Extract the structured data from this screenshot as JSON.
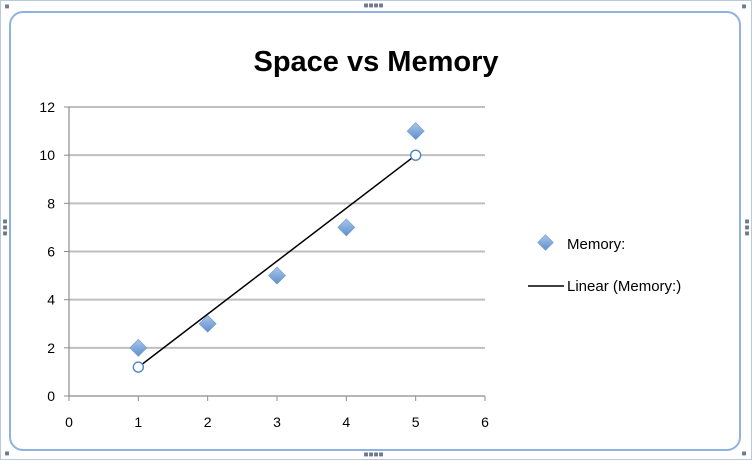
{
  "chart_data": {
    "type": "scatter",
    "title": "Space vs Memory",
    "xlabel": "",
    "ylabel": "",
    "xlim": [
      0,
      6
    ],
    "ylim": [
      0,
      12
    ],
    "xticks": [
      0,
      1,
      2,
      3,
      4,
      5,
      6
    ],
    "yticks": [
      0,
      2,
      4,
      6,
      8,
      10,
      12
    ],
    "grid": "horizontal",
    "legend_position": "right",
    "series": [
      {
        "name": "Memory:",
        "marker": "diamond",
        "color": "#7da7d8",
        "points": [
          {
            "x": 1,
            "y": 2
          },
          {
            "x": 2,
            "y": 3
          },
          {
            "x": 3,
            "y": 5
          },
          {
            "x": 4,
            "y": 7
          },
          {
            "x": 5,
            "y": 11
          }
        ]
      }
    ],
    "trendline": {
      "name": "Linear (Memory:)",
      "type": "linear",
      "color": "#000000",
      "from": {
        "x": 1,
        "y": 1.2
      },
      "to": {
        "x": 5,
        "y": 10
      }
    }
  }
}
